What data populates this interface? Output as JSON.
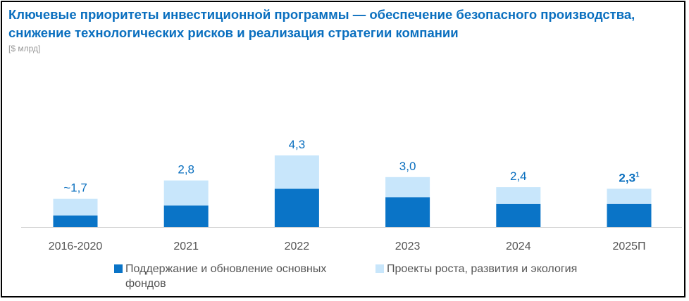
{
  "title": {
    "line1": "Ключевые приоритеты инвестиционной программы  — обеспечение безопасного производства,",
    "line2": "снижение технологических рисков и реализация стратегии компании"
  },
  "unit_label": "[$ млрд]",
  "legend": {
    "maintenance": "Поддержание и обновление основных фондов",
    "growth": "Проекты роста, развития и экология"
  },
  "colors": {
    "maintenance": "#0a74c7",
    "growth": "#c8e6fb",
    "label": "#0a6fbf",
    "title": "#0a6fbf"
  },
  "chart_data": {
    "type": "bar",
    "stacked": true,
    "categories": [
      "2016-2020",
      "2021",
      "2022",
      "2023",
      "2024",
      "2025П"
    ],
    "series": [
      {
        "name": "Поддержание и обновление основных фондов",
        "values": [
          0.7,
          1.3,
          2.3,
          1.8,
          1.4,
          1.4
        ]
      },
      {
        "name": "Проекты роста, развития и экология",
        "values": [
          1.0,
          1.5,
          2.0,
          1.2,
          1.0,
          0.9
        ]
      }
    ],
    "total_labels": [
      "~1,7",
      "2,8",
      "4,3",
      "3,0",
      "2,4",
      "2,3"
    ],
    "total_label_superscripts": [
      "",
      "",
      "",
      "",
      "",
      "1"
    ],
    "total_label_bold": [
      false,
      false,
      false,
      false,
      false,
      true
    ],
    "ylim": [
      0,
      4.3
    ],
    "grid": false
  }
}
